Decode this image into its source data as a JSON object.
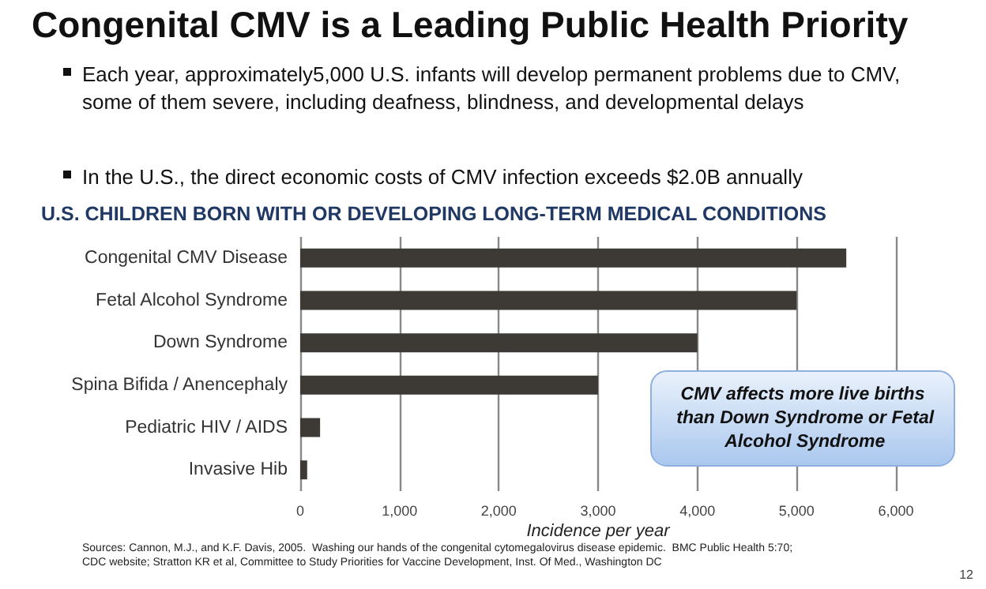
{
  "chart_data": {
    "type": "bar",
    "orientation": "horizontal",
    "title": "Congenital CMV is a Leading Public Health Priority",
    "subtitle": "U.S. CHILDREN BORN WITH OR DEVELOPING LONG-TERM MEDICAL CONDITIONS",
    "xlabel": "Incidence per year",
    "categories": [
      "Congenital CMV Disease",
      "Fetal Alcohol Syndrome",
      "Down Syndrome",
      "Spina Bifida / Anencephaly",
      "Pediatric HIV / AIDS",
      "Invasive Hib"
    ],
    "values": [
      5500,
      5000,
      4000,
      3000,
      200,
      70
    ],
    "color": "#3d3a36",
    "xlim": [
      0,
      6000
    ],
    "xticks": [
      {
        "value": 0,
        "label": "0"
      },
      {
        "value": 1000,
        "label": "1,000"
      },
      {
        "value": 2000,
        "label": "2,000"
      },
      {
        "value": 3000,
        "label": "3,000"
      },
      {
        "value": 4000,
        "label": "4,000"
      },
      {
        "value": 5000,
        "label": "5,000"
      },
      {
        "value": 6000,
        "label": "6,000"
      }
    ],
    "grid": "x",
    "annotations": [
      "Each year, approximately5,000 U.S. infants will develop permanent problems due to CMV, some of them severe, including deafness, blindness, and developmental delays",
      "In the U.S., the direct economic costs of CMV infection exceeds $2.0B annually",
      "CMV affects more live births than Down Syndrome or Fetal Alcohol Syndrome",
      "Sources: Cannon, M.J., and K.F. Davis, 2005.  Washing our hands of the congenital cytomegalovirus disease epidemic.  BMC Public Health 5:70; CDC website; Stratton KR et al, Committee to Study Priorities for Vaccine Development, Inst. Of Med., Washington DC",
      "12"
    ]
  }
}
